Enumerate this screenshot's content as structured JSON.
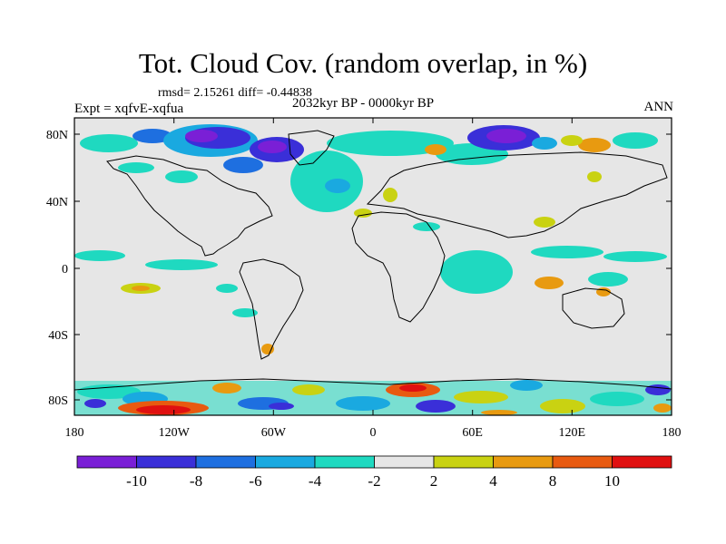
{
  "title": "Tot. Cloud Cov. (random overlap, in %)",
  "stats": "rmsd= 2.15261 diff= -0.44838",
  "experiment": "Expt = xqfvE-xqfua",
  "period": "2032kyr BP - 0000kyr BP",
  "season": "ANN",
  "lat_ticks": [
    "80N",
    "40N",
    "0",
    "40S",
    "80S"
  ],
  "lon_ticks": [
    "180",
    "120W",
    "60W",
    "0",
    "60E",
    "120E",
    "180"
  ],
  "colorbar": {
    "labels": [
      "-10",
      "-8",
      "-6",
      "-4",
      "-2",
      "2",
      "4",
      "8",
      "10"
    ],
    "colors": [
      "#7a1fd6",
      "#3a2fd8",
      "#1e6fe0",
      "#1aa9e0",
      "#1fd9c0",
      "#e6e6e6",
      "#c9d212",
      "#e89a10",
      "#e85a10",
      "#e01010"
    ]
  },
  "background_color": "#e6e6e6"
}
